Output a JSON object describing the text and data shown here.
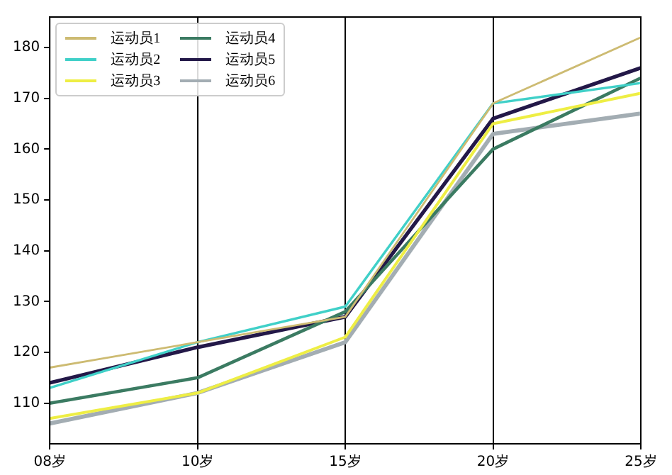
{
  "chart_data": {
    "type": "line",
    "categories": [
      "08岁",
      "10岁",
      "15岁",
      "20岁",
      "25岁"
    ],
    "series": [
      {
        "name": "运动员1",
        "color": "#cdbb72",
        "values": [
          117,
          122,
          127,
          169,
          182
        ]
      },
      {
        "name": "运动员2",
        "color": "#40d0c8",
        "values": [
          113,
          122,
          129,
          169,
          173
        ]
      },
      {
        "name": "运动员3",
        "color": "#eeee44",
        "values": [
          107,
          112,
          123,
          165,
          171
        ]
      },
      {
        "name": "运动员4",
        "color": "#3b7b62",
        "values": [
          110,
          115,
          128,
          160,
          174
        ]
      },
      {
        "name": "运动员5",
        "color": "#231848",
        "values": [
          114,
          121,
          127,
          166,
          176
        ]
      },
      {
        "name": "运动员6",
        "color": "#a3adb3",
        "values": [
          106,
          112,
          122,
          163,
          167
        ]
      }
    ],
    "ylim": [
      102,
      186
    ],
    "yticks": [
      110,
      120,
      130,
      140,
      150,
      160,
      170,
      180
    ],
    "grid": "x",
    "legend": "top left",
    "marker": "none",
    "line_style": "solid"
  }
}
